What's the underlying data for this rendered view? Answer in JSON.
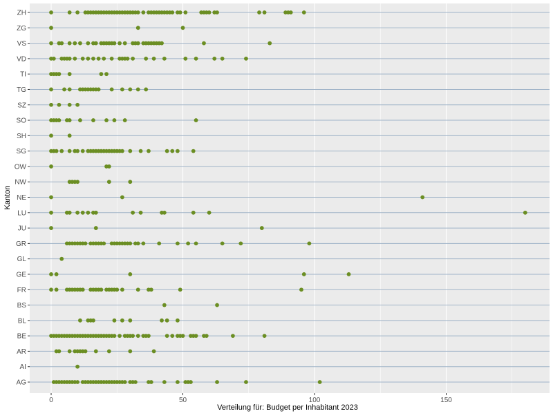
{
  "chart_data": {
    "type": "scatter",
    "xlabel": "Verteilung für: Budget per Inhabitant 2023",
    "ylabel": "Kanton",
    "xlim": [
      -8,
      189
    ],
    "x_ticks": [
      0,
      50,
      100,
      150
    ],
    "x_tick_labels": [
      "0",
      "50",
      "100",
      "150"
    ],
    "grid": "on",
    "colors": {
      "point": "#6b8e23",
      "panel": "#ebebeb",
      "grid_major_x": "#ffffff",
      "grid_y": "#9fb3c8"
    },
    "categories": [
      "AG",
      "AI",
      "AR",
      "BE",
      "BL",
      "BS",
      "FR",
      "GE",
      "GL",
      "GR",
      "JU",
      "LU",
      "NE",
      "NW",
      "OW",
      "SG",
      "SH",
      "SO",
      "SZ",
      "TG",
      "TI",
      "VD",
      "VS",
      "ZG",
      "ZH"
    ],
    "points": {
      "ZH": [
        0,
        7,
        10,
        13,
        14,
        15,
        16,
        17,
        18,
        19,
        20,
        21,
        22,
        23,
        24,
        25,
        26,
        27,
        28,
        29,
        30,
        31,
        32,
        33,
        35,
        37,
        38,
        39,
        40,
        41,
        42,
        43,
        44,
        45,
        46,
        48,
        49,
        51,
        57,
        58,
        59,
        60,
        62,
        63,
        79,
        81,
        89,
        90,
        91,
        96
      ],
      "ZG": [
        0,
        33,
        50
      ],
      "VS": [
        0,
        3,
        4,
        7,
        9,
        11,
        14,
        16,
        17,
        19,
        20,
        21,
        22,
        23,
        24,
        26,
        28,
        31,
        32,
        33,
        35,
        36,
        37,
        38,
        39,
        40,
        41,
        42,
        58,
        83
      ],
      "VD": [
        0,
        1,
        4,
        5,
        6,
        7,
        9,
        12,
        14,
        16,
        18,
        20,
        23,
        26,
        27,
        28,
        29,
        31,
        36,
        39,
        43,
        51,
        55,
        62,
        65,
        74
      ],
      "TI": [
        0,
        1,
        2,
        3,
        7,
        19,
        21
      ],
      "TG": [
        0,
        5,
        7,
        11,
        12,
        13,
        14,
        15,
        16,
        17,
        18,
        23,
        27,
        30,
        33,
        36
      ],
      "SZ": [
        0,
        3,
        7,
        10
      ],
      "SO": [
        0,
        1,
        2,
        3,
        6,
        7,
        11,
        16,
        21,
        24,
        28,
        55
      ],
      "SH": [
        0,
        7
      ],
      "SG": [
        0,
        1,
        2,
        4,
        7,
        9,
        10,
        12,
        14,
        15,
        16,
        17,
        18,
        19,
        20,
        21,
        22,
        23,
        24,
        25,
        26,
        27,
        30,
        34,
        37,
        44,
        46,
        48,
        54
      ],
      "OW": [
        0,
        21,
        22
      ],
      "NW": [
        7,
        8,
        9,
        10,
        22,
        30
      ],
      "NE": [
        0,
        27,
        141
      ],
      "LU": [
        0,
        6,
        7,
        10,
        12,
        14,
        16,
        17,
        31,
        34,
        42,
        43,
        54,
        60,
        180
      ],
      "JU": [
        0,
        17,
        80
      ],
      "GR": [
        6,
        7,
        8,
        9,
        10,
        11,
        12,
        13,
        15,
        16,
        17,
        18,
        19,
        20,
        23,
        24,
        25,
        26,
        27,
        28,
        29,
        30,
        32,
        33,
        35,
        41,
        48,
        52,
        55,
        65,
        72,
        98
      ],
      "GL": [
        4
      ],
      "GE": [
        0,
        2,
        30,
        96,
        113
      ],
      "FR": [
        0,
        2,
        6,
        7,
        8,
        9,
        10,
        11,
        12,
        15,
        16,
        17,
        18,
        19,
        21,
        22,
        23,
        24,
        25,
        27,
        33,
        37,
        38,
        49,
        95
      ],
      "BS": [
        43,
        63
      ],
      "BL": [
        11,
        14,
        15,
        16,
        24,
        27,
        30,
        42,
        44,
        48
      ],
      "BE": [
        0,
        1,
        2,
        3,
        4,
        5,
        6,
        7,
        8,
        9,
        10,
        11,
        12,
        13,
        14,
        15,
        16,
        17,
        18,
        19,
        20,
        21,
        22,
        23,
        24,
        26,
        28,
        29,
        30,
        31,
        33,
        35,
        36,
        37,
        44,
        46,
        48,
        49,
        50,
        53,
        54,
        55,
        58,
        59,
        69,
        81
      ],
      "AR": [
        2,
        3,
        7,
        9,
        10,
        11,
        12,
        13,
        17,
        22,
        30,
        39
      ],
      "AI": [
        10
      ],
      "AG": [
        1,
        2,
        3,
        4,
        5,
        6,
        7,
        8,
        9,
        10,
        12,
        13,
        14,
        15,
        16,
        17,
        18,
        19,
        20,
        21,
        22,
        23,
        24,
        25,
        26,
        27,
        28,
        30,
        31,
        32,
        37,
        38,
        43,
        48,
        51,
        52,
        53,
        63,
        74,
        102
      ]
    }
  }
}
